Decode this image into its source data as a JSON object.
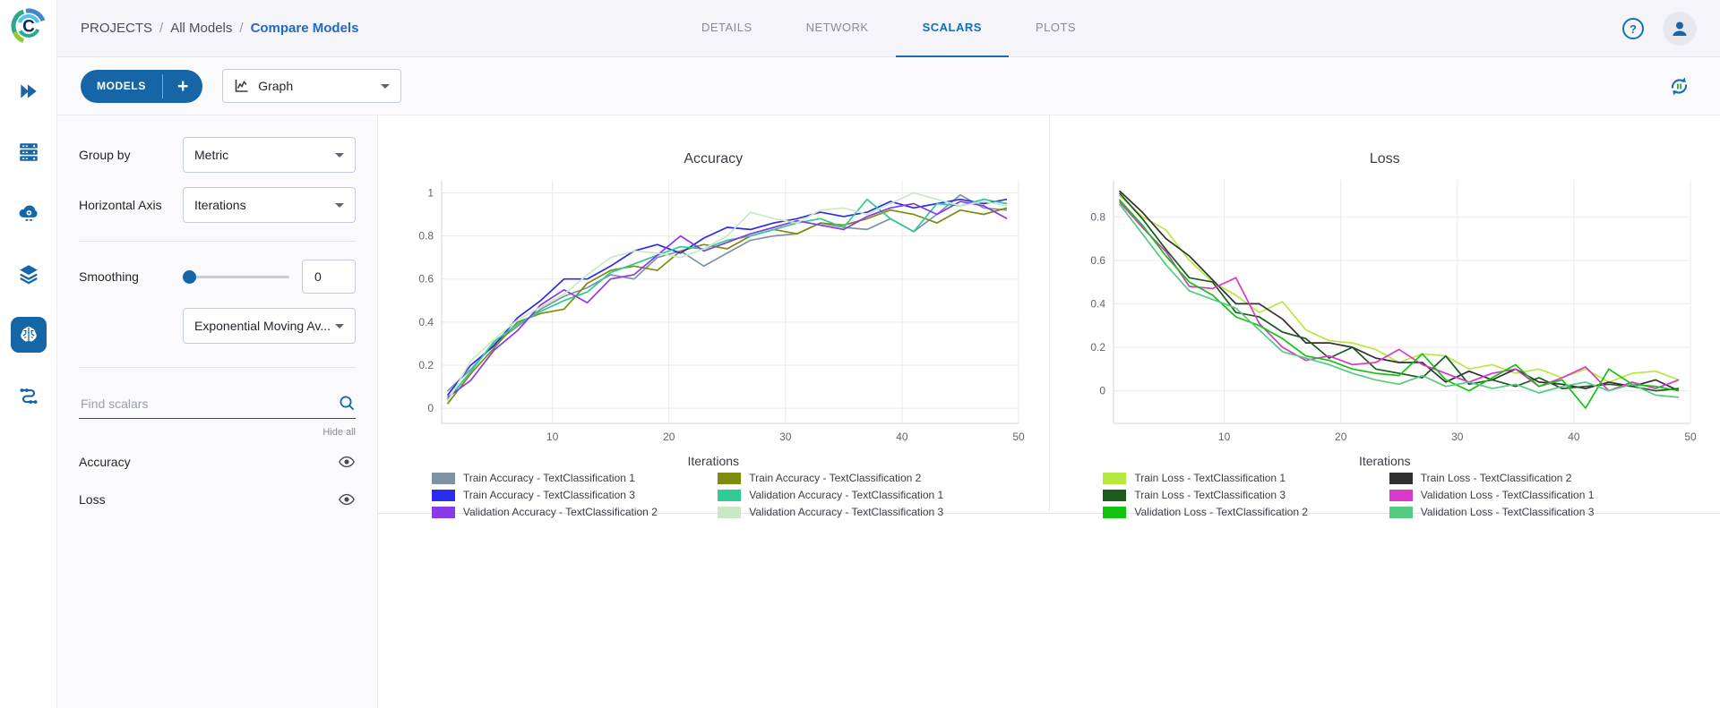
{
  "breadcrumb": {
    "items": [
      "PROJECTS",
      "All Models"
    ],
    "separator": "/",
    "current": "Compare Models"
  },
  "tabs": [
    {
      "label": "DETAILS",
      "active": false
    },
    {
      "label": "NETWORK",
      "active": false
    },
    {
      "label": "SCALARS",
      "active": true
    },
    {
      "label": "PLOTS",
      "active": false
    }
  ],
  "toolbar": {
    "models_button": "MODELS",
    "add_button": "+",
    "view_select_value": "Graph"
  },
  "sidebar": {
    "items": [
      {
        "icon": "double-chevron-icon",
        "active": false
      },
      {
        "icon": "server-rack-icon",
        "active": false
      },
      {
        "icon": "cloud-gear-icon",
        "active": false
      },
      {
        "icon": "layers-icon",
        "active": false
      },
      {
        "icon": "brain-icon",
        "active": true
      },
      {
        "icon": "pipeline-icon",
        "active": false
      }
    ]
  },
  "panel": {
    "group_by_label": "Group by",
    "group_by_value": "Metric",
    "horizontal_axis_label": "Horizontal Axis",
    "horizontal_axis_value": "Iterations",
    "smoothing_label": "Smoothing",
    "smoothing_value": "0",
    "smoothing_type_value": "Exponential Moving Av...",
    "search_placeholder": "Find scalars",
    "hide_all_label": "Hide all",
    "metrics": [
      {
        "label": "Accuracy",
        "visible": true
      },
      {
        "label": "Loss",
        "visible": true
      }
    ]
  },
  "colors": {
    "primary": "#1565a7",
    "link": "#2169c4",
    "active_tab": "#156db4"
  },
  "chart_data": [
    {
      "type": "line",
      "title": "Accuracy",
      "xlabel": "Iterations",
      "ylabel": "",
      "xlim": [
        0.5,
        50
      ],
      "ylim": [
        -0.07,
        1.06
      ],
      "xticks": [
        10,
        20,
        30,
        40,
        50
      ],
      "yticks": [
        0,
        0.2,
        0.4,
        0.6,
        0.8,
        1
      ],
      "grid": true,
      "legend_position": "bottom",
      "legend_columns": 2,
      "x": [
        1,
        3,
        5,
        7,
        9,
        11,
        13,
        15,
        17,
        19,
        21,
        23,
        25,
        27,
        29,
        31,
        33,
        35,
        37,
        39,
        41,
        43,
        45,
        47,
        49
      ],
      "series": [
        {
          "name": "Train Accuracy - TextClassification 1",
          "color": "#7d93a5",
          "values": [
            0.08,
            0.18,
            0.3,
            0.38,
            0.46,
            0.52,
            0.56,
            0.62,
            0.6,
            0.7,
            0.73,
            0.66,
            0.72,
            0.78,
            0.8,
            0.81,
            0.86,
            0.84,
            0.83,
            0.88,
            0.82,
            0.9,
            0.99,
            0.93,
            0.92
          ]
        },
        {
          "name": "Train Accuracy - TextClassification 2",
          "color": "#7d8c0e",
          "values": [
            0.02,
            0.16,
            0.28,
            0.4,
            0.44,
            0.46,
            0.58,
            0.64,
            0.66,
            0.64,
            0.73,
            0.76,
            0.74,
            0.8,
            0.83,
            0.81,
            0.86,
            0.85,
            0.88,
            0.92,
            0.9,
            0.86,
            0.92,
            0.9,
            0.93
          ]
        },
        {
          "name": "Train Accuracy - TextClassification 3",
          "color": "#2b2beb",
          "values": [
            0.06,
            0.2,
            0.29,
            0.42,
            0.5,
            0.6,
            0.6,
            0.66,
            0.73,
            0.76,
            0.72,
            0.79,
            0.84,
            0.83,
            0.86,
            0.88,
            0.91,
            0.89,
            0.91,
            0.96,
            0.93,
            0.95,
            0.97,
            0.95,
            0.97
          ]
        },
        {
          "name": "Validation Accuracy - TextClassification 1",
          "color": "#2ecb93",
          "values": [
            0.04,
            0.17,
            0.31,
            0.39,
            0.45,
            0.5,
            0.54,
            0.63,
            0.67,
            0.71,
            0.75,
            0.74,
            0.78,
            0.8,
            0.83,
            0.86,
            0.88,
            0.84,
            0.97,
            0.88,
            0.82,
            0.95,
            0.94,
            0.97,
            0.95
          ]
        },
        {
          "name": "Validation Accuracy - TextClassification 2",
          "color": "#8839ea",
          "values": [
            0.05,
            0.13,
            0.27,
            0.36,
            0.48,
            0.55,
            0.49,
            0.6,
            0.62,
            0.71,
            0.8,
            0.73,
            0.77,
            0.81,
            0.84,
            0.87,
            0.85,
            0.83,
            0.89,
            0.93,
            0.95,
            0.9,
            0.96,
            0.94,
            0.88
          ]
        },
        {
          "name": "Validation Accuracy - TextClassification 3",
          "color": "#c9e9c5",
          "values": [
            0.03,
            0.22,
            0.32,
            0.41,
            0.47,
            0.53,
            0.62,
            0.7,
            0.73,
            0.72,
            0.7,
            0.74,
            0.8,
            0.91,
            0.88,
            0.86,
            0.92,
            0.93,
            0.9,
            0.95,
            1.0,
            0.97,
            0.94,
            0.96,
            0.94
          ]
        }
      ]
    },
    {
      "type": "line",
      "title": "Loss",
      "xlabel": "Iterations",
      "ylabel": "",
      "xlim": [
        0.5,
        50
      ],
      "ylim": [
        -0.15,
        0.97
      ],
      "xticks": [
        10,
        20,
        30,
        40,
        50
      ],
      "yticks": [
        0,
        0.2,
        0.4,
        0.6,
        0.8
      ],
      "grid": true,
      "legend_position": "bottom",
      "legend_columns": 2,
      "x": [
        1,
        3,
        5,
        7,
        9,
        11,
        13,
        15,
        17,
        19,
        21,
        23,
        25,
        27,
        29,
        31,
        33,
        35,
        37,
        39,
        41,
        43,
        45,
        47,
        49
      ],
      "series": [
        {
          "name": "Train Loss - TextClassification 1",
          "color": "#b5e942",
          "values": [
            0.9,
            0.8,
            0.74,
            0.6,
            0.5,
            0.44,
            0.36,
            0.41,
            0.28,
            0.23,
            0.22,
            0.19,
            0.13,
            0.17,
            0.16,
            0.1,
            0.12,
            0.08,
            0.1,
            0.06,
            0.1,
            0.04,
            0.08,
            0.09,
            0.05
          ]
        },
        {
          "name": "Train Loss - TextClassification 2",
          "color": "#303030",
          "values": [
            0.92,
            0.82,
            0.7,
            0.62,
            0.51,
            0.4,
            0.4,
            0.33,
            0.22,
            0.22,
            0.2,
            0.15,
            0.13,
            0.13,
            0.04,
            0.09,
            0.05,
            0.1,
            0.04,
            0.03,
            0.01,
            0.04,
            0.02,
            0.05,
            0.0
          ]
        },
        {
          "name": "Train Loss - TextClassification 3",
          "color": "#1d5a1e",
          "values": [
            0.91,
            0.79,
            0.65,
            0.52,
            0.5,
            0.36,
            0.34,
            0.27,
            0.24,
            0.15,
            0.2,
            0.1,
            0.08,
            0.06,
            0.16,
            0.03,
            0.05,
            0.02,
            0.06,
            0.01,
            0.02,
            0.03,
            0.02,
            0.0,
            0.01
          ]
        },
        {
          "name": "Validation Loss - TextClassification 1",
          "color": "#d839c8",
          "values": [
            0.87,
            0.75,
            0.64,
            0.48,
            0.47,
            0.52,
            0.31,
            0.2,
            0.14,
            0.16,
            0.12,
            0.13,
            0.19,
            0.12,
            0.08,
            0.04,
            0.08,
            0.1,
            0.02,
            0.06,
            0.11,
            0.0,
            0.04,
            0.01,
            0.05
          ]
        },
        {
          "name": "Validation Loss - TextClassification 2",
          "color": "#11c411",
          "values": [
            0.88,
            0.76,
            0.62,
            0.5,
            0.44,
            0.34,
            0.3,
            0.24,
            0.16,
            0.14,
            0.1,
            0.08,
            0.07,
            0.17,
            0.05,
            0.0,
            0.06,
            0.12,
            0.02,
            0.05,
            -0.08,
            0.1,
            0.03,
            0.02,
            0.0
          ]
        },
        {
          "name": "Validation Loss - TextClassification 3",
          "color": "#55cb80",
          "values": [
            0.86,
            0.72,
            0.58,
            0.46,
            0.42,
            0.38,
            0.28,
            0.18,
            0.15,
            0.12,
            0.08,
            0.05,
            0.03,
            0.07,
            0.02,
            0.04,
            0.01,
            0.03,
            -0.01,
            0.02,
            0.04,
            0.0,
            0.03,
            -0.02,
            -0.03
          ]
        }
      ]
    }
  ]
}
